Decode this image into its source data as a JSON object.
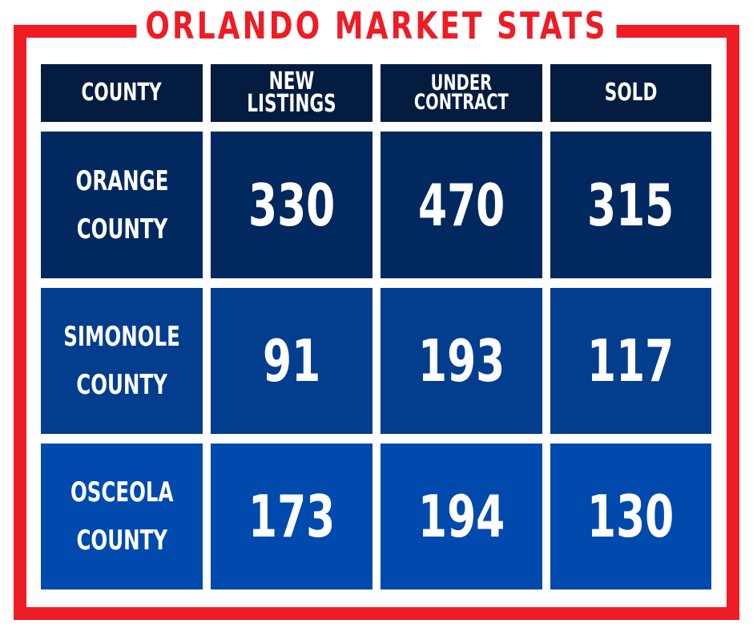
{
  "title": "ORLANDO MARKET STATS",
  "colors": {
    "frame": "#ee1c25",
    "header_bg": "#041c3f",
    "row1_bg": "#01285f",
    "row2_bg": "#023d8e",
    "row3_bg": "#0049ad",
    "text": "#ffffff"
  },
  "headers": [
    "COUNTY",
    "NEW LISTINGS",
    "UNDER\nCONTRACT",
    "SOLD"
  ],
  "rows": [
    {
      "county": "ORANGE\nCOUNTY",
      "new_listings": "330",
      "under_contract": "470",
      "sold": "315"
    },
    {
      "county": "SIMONOLE\nCOUNTY",
      "new_listings": "91",
      "under_contract": "193",
      "sold": "117"
    },
    {
      "county": "OSCEOLA\nCOUNTY",
      "new_listings": "173",
      "under_contract": "194",
      "sold": "130"
    }
  ]
}
